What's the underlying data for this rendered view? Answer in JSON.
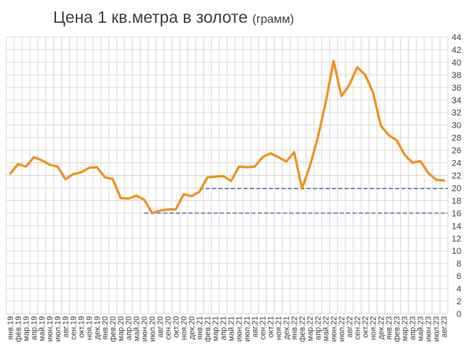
{
  "chart_data": {
    "type": "line",
    "title": "Цена 1 кв.метра в золоте",
    "subtitle": "(грамм)",
    "xlabel": "",
    "ylabel": "",
    "ylim": [
      0,
      44
    ],
    "ytick_step": 2,
    "y_axis_side": "right",
    "grid": true,
    "legend": "none",
    "categories": [
      "янв.19",
      "фев.19",
      "мар.19",
      "апр.19",
      "май.19",
      "июн.19",
      "июл.19",
      "авг.19",
      "сен.19",
      "окт.19",
      "ноя.19",
      "дек.19",
      "янв.20",
      "фев.20",
      "мар.20",
      "апр.20",
      "май.20",
      "июн.20",
      "июл.20",
      "авг.20",
      "сен.20",
      "окт.20",
      "ноя.20",
      "дек.20",
      "янв.21",
      "фев.21",
      "мар.21",
      "апр.21",
      "май.21",
      "июн.21",
      "июл.21",
      "авг.21",
      "сен.21",
      "окт.21",
      "ноя.21",
      "дек.21",
      "янв.22",
      "фев.22",
      "мар.22",
      "апр.22",
      "май.22",
      "июн.22",
      "июл.22",
      "авг.22",
      "сен.22",
      "окт.22",
      "ноя.22",
      "дек.22",
      "янв.23",
      "фев.23",
      "мар.23",
      "апр.23",
      "май.23",
      "июн.23",
      "июл.23",
      "авг.23"
    ],
    "series": [
      {
        "color": "#f0921e",
        "values": [
          22.3,
          23.8,
          23.4,
          24.9,
          24.4,
          23.7,
          23.4,
          21.4,
          22.2,
          22.5,
          23.2,
          23.3,
          21.7,
          21.4,
          18.4,
          18.3,
          18.8,
          18.1,
          16.0,
          16.4,
          16.6,
          16.6,
          19.0,
          18.7,
          19.4,
          21.7,
          21.8,
          21.9,
          21.1,
          23.4,
          23.3,
          23.4,
          24.9,
          25.5,
          24.9,
          24.2,
          25.7,
          19.9,
          23.5,
          28.0,
          33.6,
          40.2,
          34.6,
          36.4,
          39.2,
          38.0,
          35.2,
          29.9,
          28.4,
          27.6,
          25.3,
          24.0,
          24.3,
          22.4,
          21.3,
          21.2
        ]
      }
    ],
    "reference_lines": [
      {
        "y": 19.9,
        "from_category": "янв.21",
        "style": "dashed",
        "color": "#4a6fa5"
      },
      {
        "y": 16.0,
        "from_category": "июн.20",
        "style": "dashed",
        "color": "#4a6fa5"
      }
    ]
  }
}
